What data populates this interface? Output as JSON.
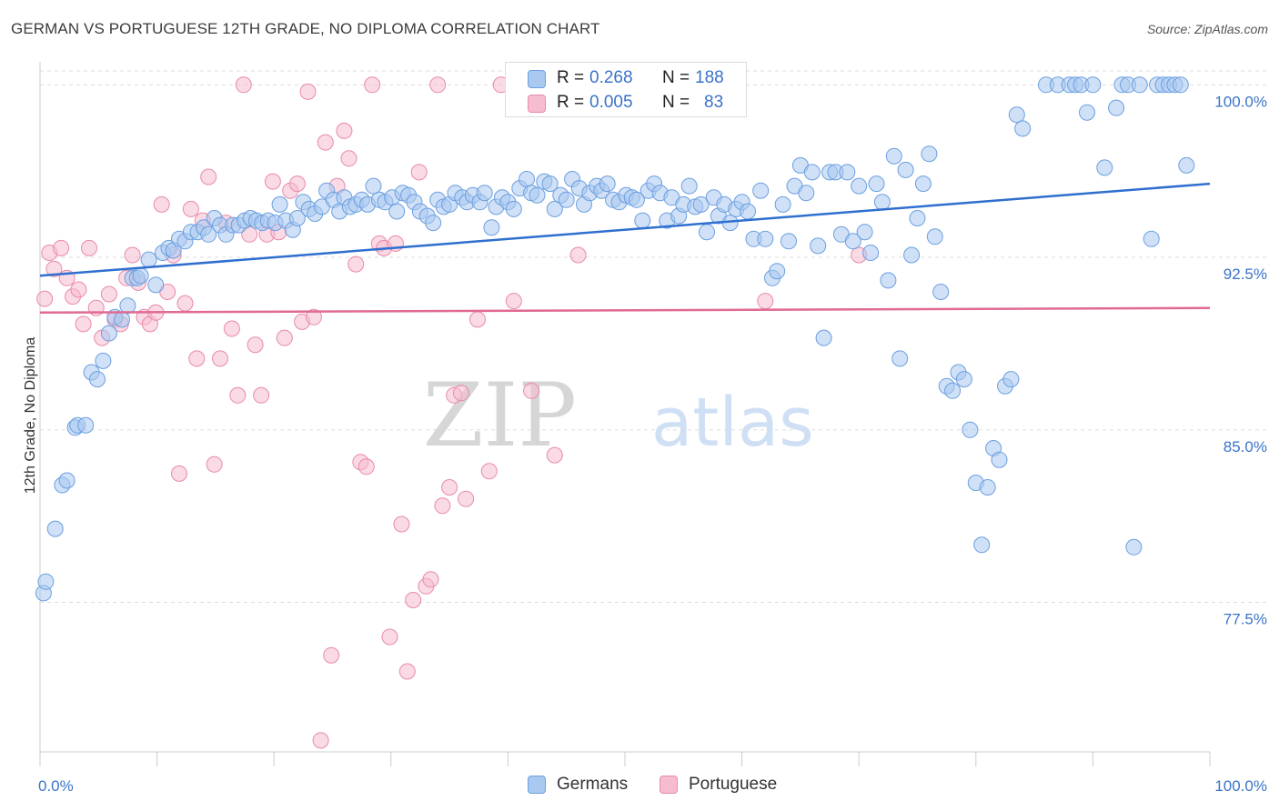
{
  "title": "GERMAN VS PORTUGUESE 12TH GRADE, NO DIPLOMA CORRELATION CHART",
  "source": "Source: ZipAtlas.com",
  "watermark": {
    "zip": "ZIP",
    "atlas": "atlas"
  },
  "legend_top": [
    {
      "r_label": "R =",
      "r_value": "0.268",
      "n_label": "N =",
      "n_value": "188"
    },
    {
      "r_label": "R =",
      "r_value": "0.005",
      "n_label": "N =",
      "n_value": "83"
    }
  ],
  "legend_bottom": [
    {
      "label": "Germans"
    },
    {
      "label": "Portuguese"
    }
  ],
  "colors": {
    "germans_fill": "#a9c9f0",
    "germans_stroke": "#6b9fe0",
    "germans_line": "#2f6fcf",
    "portuguese_fill": "#f6bcd0",
    "portuguese_stroke": "#e98aab",
    "portuguese_line": "#e06a93",
    "tick_label": "#3a73c8",
    "grid": "#dddddd"
  },
  "chart_data": {
    "type": "scatter",
    "title": "GERMAN VS PORTUGUESE 12TH GRADE, NO DIPLOMA CORRELATION CHART",
    "xlabel": "",
    "ylabel": "12th Grade, No Diploma",
    "xlim": [
      0,
      100
    ],
    "ylim": [
      71.0,
      101.0
    ],
    "x_tick_labels": [
      "0.0%",
      "100.0%"
    ],
    "y_ticks": [
      77.5,
      85.0,
      92.5,
      100.0
    ],
    "y_tick_labels": [
      "77.5%",
      "85.0%",
      "92.5%",
      "100.0%"
    ],
    "grid": "horizontal dashed",
    "legend_placement": "top-center and bottom",
    "series": [
      {
        "name": "Germans",
        "r": 0.268,
        "n": 188,
        "trend": {
          "x": [
            0,
            100
          ],
          "y": [
            91.7,
            95.7
          ]
        },
        "points": [
          [
            0.3,
            77.9
          ],
          [
            0.5,
            78.4
          ],
          [
            1.3,
            80.7
          ],
          [
            1.9,
            82.6
          ],
          [
            2.3,
            82.8
          ],
          [
            3.0,
            85.1
          ],
          [
            3.2,
            85.2
          ],
          [
            3.9,
            85.2
          ],
          [
            4.4,
            87.5
          ],
          [
            4.9,
            87.2
          ],
          [
            5.4,
            88.0
          ],
          [
            5.9,
            89.2
          ],
          [
            6.4,
            89.9
          ],
          [
            7.0,
            89.8
          ],
          [
            7.5,
            90.4
          ],
          [
            7.9,
            91.6
          ],
          [
            8.3,
            91.6
          ],
          [
            8.6,
            91.7
          ],
          [
            9.3,
            92.4
          ],
          [
            9.9,
            91.3
          ],
          [
            10.5,
            92.7
          ],
          [
            11.0,
            92.9
          ],
          [
            11.4,
            92.8
          ],
          [
            11.9,
            93.3
          ],
          [
            12.4,
            93.2
          ],
          [
            12.9,
            93.6
          ],
          [
            13.5,
            93.6
          ],
          [
            14.0,
            93.8
          ],
          [
            14.4,
            93.5
          ],
          [
            14.9,
            94.2
          ],
          [
            15.4,
            93.9
          ],
          [
            15.9,
            93.5
          ],
          [
            16.5,
            93.9
          ],
          [
            17.0,
            93.9
          ],
          [
            17.5,
            94.1
          ],
          [
            18.0,
            94.2
          ],
          [
            18.5,
            94.1
          ],
          [
            19.0,
            94.0
          ],
          [
            19.5,
            94.1
          ],
          [
            20.1,
            94.0
          ],
          [
            20.5,
            94.8
          ],
          [
            21.0,
            94.1
          ],
          [
            21.6,
            93.7
          ],
          [
            22.0,
            94.2
          ],
          [
            22.5,
            94.9
          ],
          [
            23.0,
            94.6
          ],
          [
            23.5,
            94.4
          ],
          [
            24.1,
            94.7
          ],
          [
            24.5,
            95.4
          ],
          [
            25.1,
            95.0
          ],
          [
            25.6,
            94.5
          ],
          [
            26.0,
            95.1
          ],
          [
            26.5,
            94.7
          ],
          [
            27.0,
            94.8
          ],
          [
            27.5,
            95.0
          ],
          [
            28.0,
            94.8
          ],
          [
            28.5,
            95.6
          ],
          [
            29.0,
            95.0
          ],
          [
            29.5,
            94.9
          ],
          [
            30.1,
            95.1
          ],
          [
            30.5,
            94.5
          ],
          [
            31.0,
            95.3
          ],
          [
            31.5,
            95.2
          ],
          [
            32.0,
            94.9
          ],
          [
            32.5,
            94.5
          ],
          [
            33.1,
            94.3
          ],
          [
            33.6,
            94.0
          ],
          [
            34.0,
            95.0
          ],
          [
            34.5,
            94.7
          ],
          [
            35.0,
            94.8
          ],
          [
            35.5,
            95.3
          ],
          [
            36.1,
            95.1
          ],
          [
            36.5,
            94.9
          ],
          [
            37.0,
            95.2
          ],
          [
            37.6,
            94.9
          ],
          [
            38.0,
            95.3
          ],
          [
            38.6,
            93.8
          ],
          [
            39.0,
            94.7
          ],
          [
            39.5,
            95.1
          ],
          [
            40.0,
            94.9
          ],
          [
            40.5,
            94.6
          ],
          [
            41.0,
            95.5
          ],
          [
            41.6,
            95.9
          ],
          [
            42.0,
            95.3
          ],
          [
            42.5,
            95.2
          ],
          [
            43.1,
            95.8
          ],
          [
            43.6,
            95.7
          ],
          [
            44.0,
            94.6
          ],
          [
            44.5,
            95.2
          ],
          [
            45.0,
            95.0
          ],
          [
            45.5,
            95.9
          ],
          [
            46.1,
            95.5
          ],
          [
            46.5,
            94.8
          ],
          [
            47.0,
            95.3
          ],
          [
            47.6,
            95.6
          ],
          [
            48.0,
            95.4
          ],
          [
            48.5,
            95.7
          ],
          [
            49.0,
            95.0
          ],
          [
            49.5,
            94.9
          ],
          [
            50.1,
            95.2
          ],
          [
            50.6,
            95.1
          ],
          [
            51.0,
            95.0
          ],
          [
            51.5,
            94.1
          ],
          [
            52.0,
            95.4
          ],
          [
            52.5,
            95.7
          ],
          [
            53.0,
            95.3
          ],
          [
            53.6,
            94.1
          ],
          [
            54.0,
            95.1
          ],
          [
            54.6,
            94.3
          ],
          [
            55.0,
            94.8
          ],
          [
            55.5,
            95.6
          ],
          [
            56.0,
            94.7
          ],
          [
            56.5,
            94.8
          ],
          [
            57.0,
            93.6
          ],
          [
            57.6,
            95.1
          ],
          [
            58.0,
            94.3
          ],
          [
            58.5,
            94.8
          ],
          [
            59.0,
            94.0
          ],
          [
            59.5,
            94.6
          ],
          [
            60.0,
            94.9
          ],
          [
            60.5,
            94.5
          ],
          [
            61.0,
            93.3
          ],
          [
            61.6,
            95.4
          ],
          [
            62.0,
            93.3
          ],
          [
            62.6,
            91.6
          ],
          [
            63.0,
            91.9
          ],
          [
            63.5,
            94.8
          ],
          [
            64.0,
            93.2
          ],
          [
            64.5,
            95.6
          ],
          [
            65.0,
            96.5
          ],
          [
            65.5,
            95.3
          ],
          [
            66.0,
            96.2
          ],
          [
            66.5,
            93.0
          ],
          [
            67.0,
            89.0
          ],
          [
            67.5,
            96.2
          ],
          [
            68.0,
            96.2
          ],
          [
            68.5,
            93.5
          ],
          [
            69.0,
            96.2
          ],
          [
            69.5,
            93.2
          ],
          [
            70.0,
            95.6
          ],
          [
            70.5,
            93.6
          ],
          [
            71.0,
            92.7
          ],
          [
            71.5,
            95.7
          ],
          [
            72.0,
            94.9
          ],
          [
            72.5,
            91.5
          ],
          [
            73.0,
            96.9
          ],
          [
            73.5,
            88.1
          ],
          [
            74.0,
            96.3
          ],
          [
            74.5,
            92.6
          ],
          [
            75.0,
            94.2
          ],
          [
            75.5,
            95.7
          ],
          [
            76.0,
            97.0
          ],
          [
            76.5,
            93.4
          ],
          [
            77.0,
            91.0
          ],
          [
            77.5,
            86.9
          ],
          [
            78.0,
            86.7
          ],
          [
            78.5,
            87.5
          ],
          [
            79.0,
            87.2
          ],
          [
            79.5,
            85.0
          ],
          [
            80.0,
            82.7
          ],
          [
            80.5,
            80.0
          ],
          [
            81.0,
            82.5
          ],
          [
            81.5,
            84.2
          ],
          [
            82.0,
            83.7
          ],
          [
            82.5,
            86.9
          ],
          [
            83.0,
            87.2
          ],
          [
            83.5,
            98.7
          ],
          [
            84.0,
            98.1
          ],
          [
            86.0,
            100.0
          ],
          [
            87.0,
            100.0
          ],
          [
            88.0,
            100.0
          ],
          [
            88.5,
            100.0
          ],
          [
            89.0,
            100.0
          ],
          [
            89.5,
            98.8
          ],
          [
            90.0,
            100.0
          ],
          [
            91.0,
            96.4
          ],
          [
            92.0,
            99.0
          ],
          [
            92.5,
            100.0
          ],
          [
            93.0,
            100.0
          ],
          [
            93.5,
            79.9
          ],
          [
            94.0,
            100.0
          ],
          [
            95.0,
            93.3
          ],
          [
            95.5,
            100.0
          ],
          [
            96.0,
            100.0
          ],
          [
            96.5,
            100.0
          ],
          [
            97.0,
            100.0
          ],
          [
            97.5,
            100.0
          ],
          [
            98.0,
            96.5
          ]
        ]
      },
      {
        "name": "Portuguese",
        "r": 0.005,
        "n": 83,
        "trend": {
          "x": [
            0,
            100
          ],
          "y": [
            90.1,
            90.3
          ]
        },
        "points": [
          [
            0.4,
            90.7
          ],
          [
            0.8,
            92.7
          ],
          [
            1.2,
            92.0
          ],
          [
            1.8,
            92.9
          ],
          [
            2.3,
            91.6
          ],
          [
            2.8,
            90.8
          ],
          [
            3.3,
            91.1
          ],
          [
            3.7,
            89.6
          ],
          [
            4.2,
            92.9
          ],
          [
            4.8,
            90.3
          ],
          [
            5.3,
            89.0
          ],
          [
            5.9,
            90.9
          ],
          [
            6.4,
            89.8
          ],
          [
            6.9,
            89.6
          ],
          [
            7.4,
            91.6
          ],
          [
            7.9,
            92.6
          ],
          [
            8.4,
            91.4
          ],
          [
            8.9,
            89.9
          ],
          [
            9.4,
            89.6
          ],
          [
            9.9,
            90.1
          ],
          [
            10.4,
            94.8
          ],
          [
            10.9,
            91.0
          ],
          [
            11.4,
            92.6
          ],
          [
            11.9,
            83.1
          ],
          [
            12.4,
            90.5
          ],
          [
            12.9,
            94.6
          ],
          [
            13.4,
            88.1
          ],
          [
            13.9,
            94.1
          ],
          [
            14.4,
            96.0
          ],
          [
            14.9,
            83.5
          ],
          [
            15.4,
            88.1
          ],
          [
            15.9,
            94.0
          ],
          [
            16.4,
            89.4
          ],
          [
            16.9,
            86.5
          ],
          [
            17.4,
            100.0
          ],
          [
            17.9,
            93.5
          ],
          [
            18.4,
            88.7
          ],
          [
            18.9,
            86.5
          ],
          [
            19.4,
            93.5
          ],
          [
            19.9,
            95.8
          ],
          [
            20.4,
            93.6
          ],
          [
            20.9,
            89.0
          ],
          [
            21.4,
            95.4
          ],
          [
            22.0,
            95.7
          ],
          [
            22.4,
            89.7
          ],
          [
            22.9,
            99.7
          ],
          [
            23.4,
            89.9
          ],
          [
            24.0,
            71.5
          ],
          [
            24.4,
            97.5
          ],
          [
            24.9,
            75.2
          ],
          [
            25.4,
            95.6
          ],
          [
            26.0,
            98.0
          ],
          [
            26.4,
            96.8
          ],
          [
            27.0,
            92.2
          ],
          [
            27.4,
            83.6
          ],
          [
            27.9,
            83.4
          ],
          [
            28.4,
            100.0
          ],
          [
            29.0,
            93.1
          ],
          [
            29.4,
            92.9
          ],
          [
            29.9,
            76.0
          ],
          [
            30.4,
            93.1
          ],
          [
            30.9,
            80.9
          ],
          [
            31.4,
            74.5
          ],
          [
            31.9,
            77.6
          ],
          [
            32.4,
            96.2
          ],
          [
            33.0,
            78.2
          ],
          [
            33.4,
            78.5
          ],
          [
            34.0,
            100.0
          ],
          [
            34.4,
            81.7
          ],
          [
            35.0,
            82.5
          ],
          [
            35.4,
            86.5
          ],
          [
            36.0,
            86.6
          ],
          [
            36.4,
            82.0
          ],
          [
            37.4,
            89.8
          ],
          [
            38.4,
            83.2
          ],
          [
            39.4,
            100.0
          ],
          [
            40.5,
            90.6
          ],
          [
            42.0,
            86.7
          ],
          [
            44.0,
            83.9
          ],
          [
            46.0,
            92.6
          ],
          [
            50.0,
            100.0
          ],
          [
            62.0,
            90.6
          ],
          [
            70.0,
            92.6
          ]
        ]
      }
    ]
  }
}
